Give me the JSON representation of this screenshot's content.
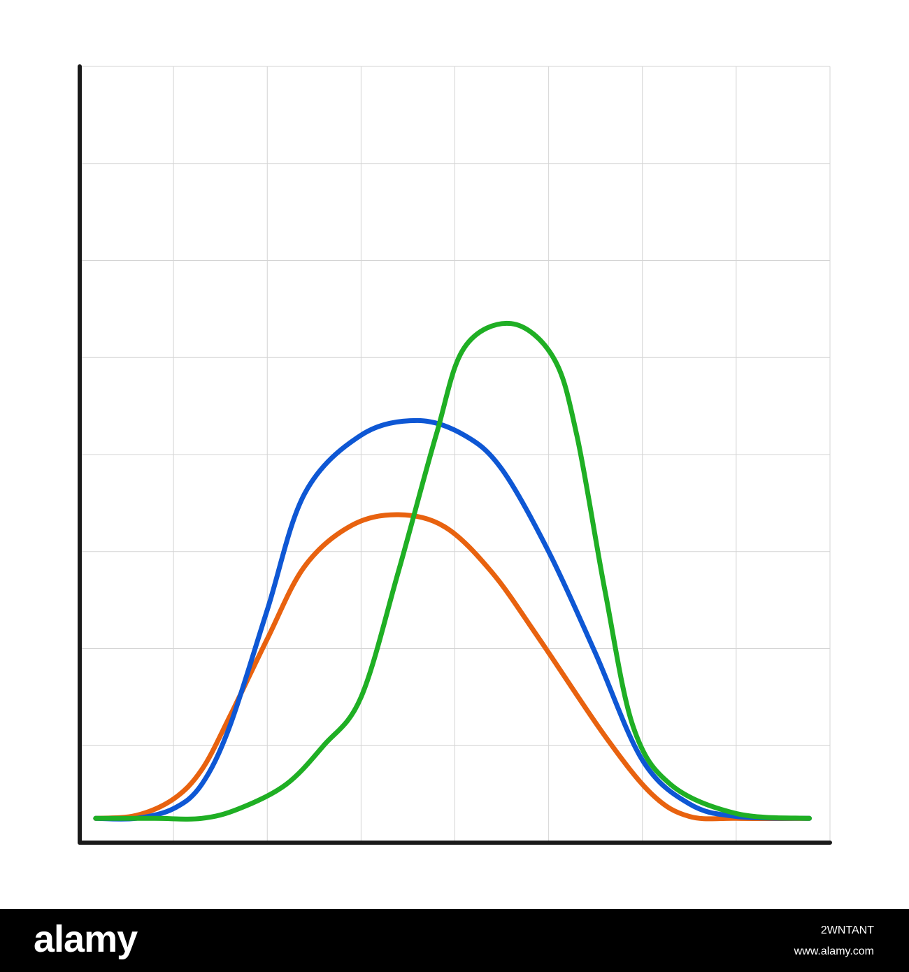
{
  "chart_data": {
    "type": "line",
    "title": "",
    "xlabel": "",
    "ylabel": "",
    "xlim": [
      0,
      8
    ],
    "ylim": [
      0,
      8
    ],
    "grid": true,
    "legend": "none",
    "series": [
      {
        "color": "#e8620f",
        "points": [
          [
            0.17,
            0.25
          ],
          [
            0.6,
            0.28
          ],
          [
            1.0,
            0.45
          ],
          [
            1.3,
            0.75
          ],
          [
            1.6,
            1.3
          ],
          [
            2.0,
            2.1
          ],
          [
            2.4,
            2.85
          ],
          [
            2.9,
            3.27
          ],
          [
            3.4,
            3.38
          ],
          [
            3.9,
            3.25
          ],
          [
            4.4,
            2.78
          ],
          [
            4.9,
            2.1
          ],
          [
            5.6,
            1.1
          ],
          [
            6.1,
            0.5
          ],
          [
            6.5,
            0.27
          ],
          [
            7.0,
            0.25
          ],
          [
            7.78,
            0.25
          ]
        ]
      },
      {
        "color": "#0e57d4",
        "points": [
          [
            0.17,
            0.25
          ],
          [
            0.6,
            0.25
          ],
          [
            1.0,
            0.35
          ],
          [
            1.3,
            0.6
          ],
          [
            1.6,
            1.2
          ],
          [
            2.0,
            2.4
          ],
          [
            2.4,
            3.6
          ],
          [
            3.0,
            4.2
          ],
          [
            3.6,
            4.35
          ],
          [
            4.1,
            4.2
          ],
          [
            4.5,
            3.85
          ],
          [
            5.0,
            3.0
          ],
          [
            5.5,
            1.95
          ],
          [
            6.0,
            0.85
          ],
          [
            6.5,
            0.4
          ],
          [
            7.0,
            0.27
          ],
          [
            7.78,
            0.25
          ]
        ]
      },
      {
        "color": "#1faf24",
        "points": [
          [
            0.17,
            0.25
          ],
          [
            0.8,
            0.25
          ],
          [
            1.3,
            0.25
          ],
          [
            1.7,
            0.35
          ],
          [
            2.2,
            0.6
          ],
          [
            2.6,
            1.0
          ],
          [
            3.0,
            1.5
          ],
          [
            3.4,
            2.8
          ],
          [
            3.8,
            4.2
          ],
          [
            4.1,
            5.1
          ],
          [
            4.6,
            5.35
          ],
          [
            5.05,
            5.0
          ],
          [
            5.3,
            4.2
          ],
          [
            5.6,
            2.6
          ],
          [
            5.9,
            1.2
          ],
          [
            6.3,
            0.6
          ],
          [
            7.0,
            0.3
          ],
          [
            7.78,
            0.25
          ]
        ]
      }
    ]
  },
  "colors": {
    "axis": "#1a1a1a",
    "grid": "#d4d4d4",
    "footer": "#000000"
  },
  "footer": {
    "brand": "alamy",
    "image_id": "2WNTANT",
    "url": "www.alamy.com"
  }
}
